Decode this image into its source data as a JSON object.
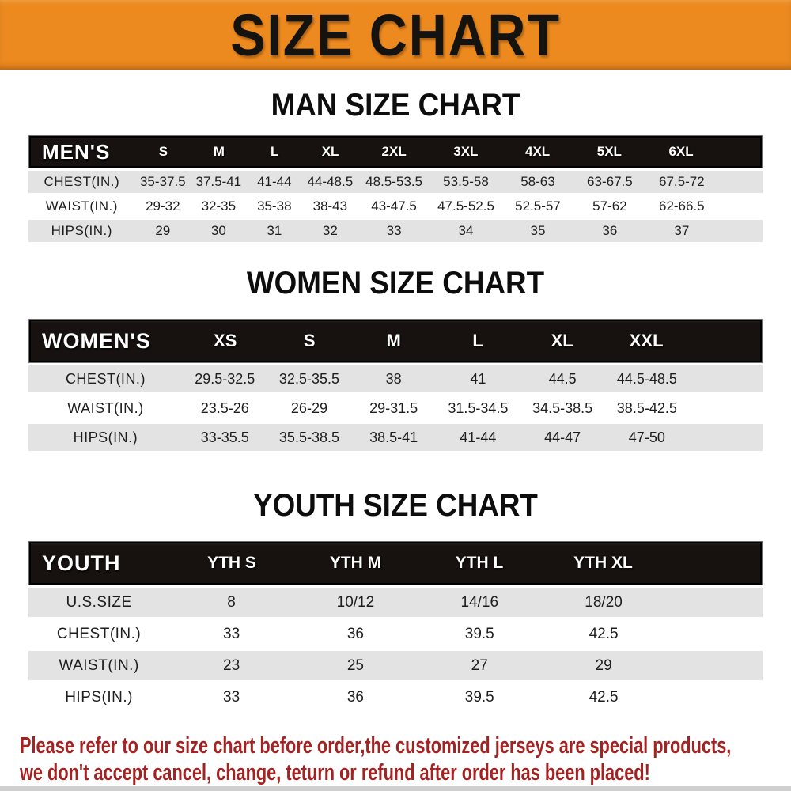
{
  "banner": {
    "title": "SIZE CHART"
  },
  "sections": [
    {
      "id": "men",
      "title": "MAN SIZE CHART",
      "table": {
        "label": "MEN'S",
        "columns": [
          "S",
          "M",
          "L",
          "XL",
          "2XL",
          "3XL",
          "4XL",
          "5XL",
          "6XL"
        ],
        "rows": [
          {
            "label": "CHEST(IN.)",
            "values": [
              "35-37.5",
              "37.5-41",
              "41-44",
              "44-48.5",
              "48.5-53.5",
              "53.5-58",
              "58-63",
              "63-67.5",
              "67.5-72"
            ]
          },
          {
            "label": "WAIST(IN.)",
            "values": [
              "29-32",
              "32-35",
              "35-38",
              "38-43",
              "43-47.5",
              "47.5-52.5",
              "52.5-57",
              "57-62",
              "62-66.5"
            ]
          },
          {
            "label": "HIPS(IN.)",
            "values": [
              "29",
              "30",
              "31",
              "32",
              "33",
              "34",
              "35",
              "36",
              "37"
            ]
          }
        ]
      }
    },
    {
      "id": "women",
      "title": "WOMEN SIZE CHART",
      "table": {
        "label": "WOMEN'S",
        "columns": [
          "XS",
          "S",
          "M",
          "L",
          "XL",
          "XXL"
        ],
        "rows": [
          {
            "label": "CHEST(IN.)",
            "values": [
              "29.5-32.5",
              "32.5-35.5",
              "38",
              "41",
              "44.5",
              "44.5-48.5"
            ]
          },
          {
            "label": "WAIST(IN.)",
            "values": [
              "23.5-26",
              "26-29",
              "29-31.5",
              "31.5-34.5",
              "34.5-38.5",
              "38.5-42.5"
            ]
          },
          {
            "label": "HIPS(IN.)",
            "values": [
              "33-35.5",
              "35.5-38.5",
              "38.5-41",
              "41-44",
              "44-47",
              "47-50"
            ]
          }
        ]
      }
    },
    {
      "id": "youth",
      "title": "YOUTH SIZE CHART",
      "table": {
        "label": "YOUTH",
        "columns": [
          "YTH S",
          "YTH M",
          "YTH L",
          "YTH XL"
        ],
        "rows": [
          {
            "label": "U.S.SIZE",
            "values": [
              "8",
              "10/12",
              "14/16",
              "18/20"
            ]
          },
          {
            "label": "CHEST(IN.)",
            "values": [
              "33",
              "36",
              "39.5",
              "42.5"
            ]
          },
          {
            "label": "WAIST(IN.)",
            "values": [
              "23",
              "25",
              "27",
              "29"
            ]
          },
          {
            "label": "HIPS(IN.)",
            "values": [
              "33",
              "36",
              "39.5",
              "42.5"
            ]
          }
        ]
      }
    }
  ],
  "footer": {
    "line1": "Please refer to our size chart before order,the customized jerseys are special products,",
    "line2": "we don't accept cancel, change, teturn or refund after order has been placed!",
    "text_color": "#a32222"
  },
  "colors": {
    "banner_orange": "#ec8a1f",
    "header_bar_black": "#17120f",
    "stripe_gray": "#e3e3e3"
  }
}
